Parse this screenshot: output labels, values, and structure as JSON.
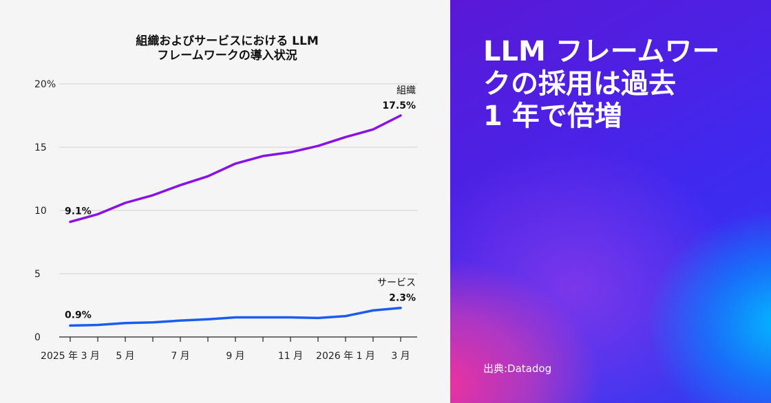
{
  "headline": {
    "lines": [
      "LLM フレームワー",
      "クの採用は過去",
      "1 年で倍増"
    ]
  },
  "source": "出典:Datadog",
  "colors": {
    "organization": "#8a10e8",
    "service": "#1a5cf0"
  },
  "chart_data": {
    "type": "line",
    "title": [
      "組織およびサービスにおける LLM",
      "フレームワークの導入状況"
    ],
    "xlabel": "",
    "ylabel": "",
    "ylim": [
      0,
      20
    ],
    "y_ticks": [
      {
        "value": 0,
        "label": "0"
      },
      {
        "value": 5,
        "label": "5"
      },
      {
        "value": 10,
        "label": "10"
      },
      {
        "value": 15,
        "label": "15"
      },
      {
        "value": 20,
        "label": "20%"
      }
    ],
    "x": [
      "2025-03",
      "2025-04",
      "2025-05",
      "2025-06",
      "2025-07",
      "2025-08",
      "2025-09",
      "2025-10",
      "2025-11",
      "2025-12",
      "2026-01",
      "2026-02",
      "2026-03"
    ],
    "x_tick_labels": [
      {
        "index": 0,
        "label": "2025 年 3 月"
      },
      {
        "index": 2,
        "label": "5 月"
      },
      {
        "index": 4,
        "label": "7 月"
      },
      {
        "index": 6,
        "label": "9 月"
      },
      {
        "index": 8,
        "label": "11 月"
      },
      {
        "index": 10,
        "label": "2026 年 1 月"
      },
      {
        "index": 12,
        "label": "3 月"
      }
    ],
    "grid": "horizontal",
    "series": [
      {
        "key": "organization",
        "name": "組織",
        "values": [
          9.1,
          9.7,
          10.6,
          11.2,
          12.0,
          12.7,
          13.7,
          14.3,
          14.6,
          15.1,
          15.8,
          16.4,
          17.5
        ],
        "start_label": "9.1%",
        "end_label": "17.5%"
      },
      {
        "key": "service",
        "name": "サービス",
        "values": [
          0.9,
          0.95,
          1.1,
          1.15,
          1.3,
          1.4,
          1.55,
          1.55,
          1.55,
          1.5,
          1.65,
          2.1,
          2.3
        ],
        "start_label": "0.9%",
        "end_label": "2.3%"
      }
    ]
  }
}
